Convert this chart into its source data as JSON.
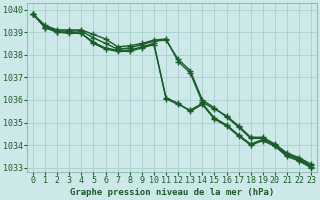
{
  "xlabel": "Graphe pression niveau de la mer (hPa)",
  "ylim": [
    1032.8,
    1040.3
  ],
  "xlim": [
    -0.5,
    23.5
  ],
  "yticks": [
    1033,
    1034,
    1035,
    1036,
    1037,
    1038,
    1039,
    1040
  ],
  "xticks": [
    0,
    1,
    2,
    3,
    4,
    5,
    6,
    7,
    8,
    9,
    10,
    11,
    12,
    13,
    14,
    15,
    16,
    17,
    18,
    19,
    20,
    21,
    22,
    23
  ],
  "background_color": "#cce8e8",
  "grid_color": "#aad0d0",
  "line_color": "#1a5c2a",
  "series": [
    [
      1039.8,
      1039.3,
      1039.1,
      1039.1,
      1039.1,
      1038.9,
      1038.7,
      1038.35,
      1038.4,
      1038.5,
      1038.65,
      1038.7,
      1037.7,
      1037.2,
      1035.9,
      1035.6,
      1035.3,
      1034.85,
      1034.35,
      1034.35,
      1034.05,
      1033.65,
      1033.45,
      1033.15
    ],
    [
      1039.8,
      1039.25,
      1039.05,
      1039.05,
      1039.05,
      1038.75,
      1038.5,
      1038.25,
      1038.3,
      1038.45,
      1038.6,
      1038.65,
      1037.8,
      1037.3,
      1036.0,
      1035.65,
      1035.25,
      1034.8,
      1034.3,
      1034.3,
      1034.0,
      1033.6,
      1033.4,
      1033.1
    ],
    [
      1039.8,
      1039.2,
      1039.0,
      1039.0,
      1038.95,
      1038.55,
      1038.3,
      1038.2,
      1038.2,
      1038.35,
      1038.5,
      1036.05,
      1035.8,
      1035.55,
      1035.85,
      1035.2,
      1034.9,
      1034.45,
      1034.05,
      1034.25,
      1034.0,
      1033.55,
      1033.35,
      1033.05
    ],
    [
      1039.8,
      1039.2,
      1039.0,
      1038.95,
      1038.95,
      1038.5,
      1038.25,
      1038.15,
      1038.15,
      1038.3,
      1038.45,
      1036.1,
      1035.85,
      1035.5,
      1035.8,
      1035.15,
      1034.85,
      1034.4,
      1034.0,
      1034.2,
      1033.95,
      1033.5,
      1033.3,
      1033.0
    ]
  ],
  "marker": "+",
  "markersize": 4,
  "linewidth": 1.0,
  "markeredgewidth": 1.0,
  "label_fontsize": 6.5,
  "tick_fontsize": 6.0
}
